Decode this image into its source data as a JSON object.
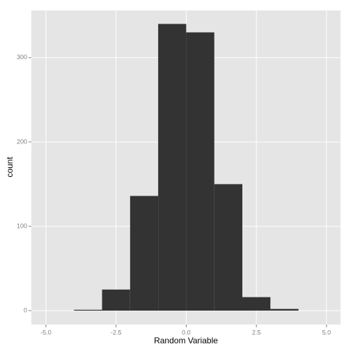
{
  "chart_data": {
    "type": "histogram",
    "bins": [
      -4,
      -3,
      -2,
      -1,
      0,
      1,
      2,
      3,
      4
    ],
    "values": [
      1,
      25,
      136,
      340,
      330,
      150,
      16,
      2
    ],
    "color": "#333333",
    "xlabel": "Random Variable",
    "ylabel": "count",
    "xlim": [
      -5.52,
      5.5
    ],
    "xticks": [
      {
        "value": -5,
        "label": "-5.0"
      },
      {
        "value": -2.5,
        "label": "-2.5"
      },
      {
        "value": 0,
        "label": "0.0"
      },
      {
        "value": 2.5,
        "label": "2.5"
      },
      {
        "value": 5,
        "label": "5.0"
      }
    ],
    "ylim": [
      -16.5,
      356
    ],
    "yticks": [
      0,
      100,
      200,
      300
    ],
    "grid": true
  }
}
